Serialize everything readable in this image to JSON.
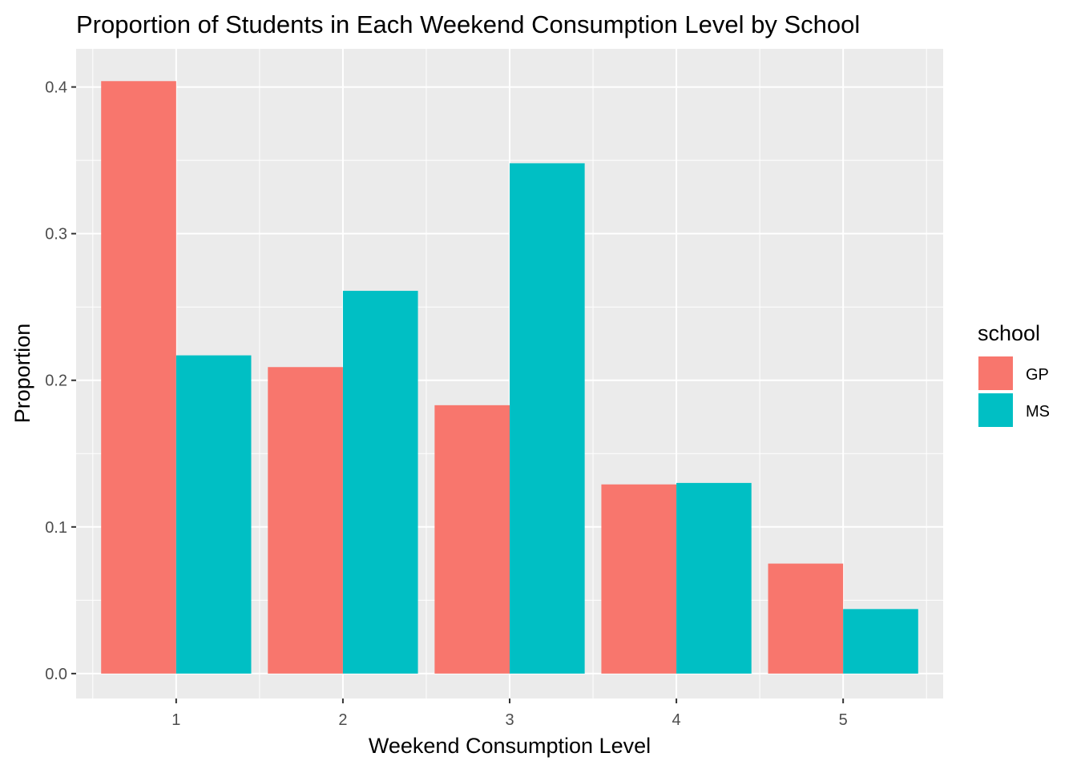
{
  "chart_data": {
    "type": "bar",
    "title": "Proportion of Students in Each Weekend Consumption Level by School",
    "xlabel": "Weekend Consumption Level",
    "ylabel": "Proportion",
    "categories": [
      "1",
      "2",
      "3",
      "4",
      "5"
    ],
    "series": [
      {
        "name": "GP",
        "color": "#F8766D",
        "values": [
          0.404,
          0.209,
          0.183,
          0.129,
          0.075
        ]
      },
      {
        "name": "MS",
        "color": "#00BFC4",
        "values": [
          0.217,
          0.261,
          0.348,
          0.13,
          0.044
        ]
      }
    ],
    "ylim": [
      -0.017,
      0.426
    ],
    "yticks": [
      0.0,
      0.1,
      0.2,
      0.3,
      0.4
    ],
    "ytick_labels": [
      "0.0",
      "0.1",
      "0.2",
      "0.3",
      "0.4"
    ],
    "grid": true,
    "panel_color": "#EBEBEB",
    "legend": {
      "title": "school",
      "position": "right"
    }
  }
}
